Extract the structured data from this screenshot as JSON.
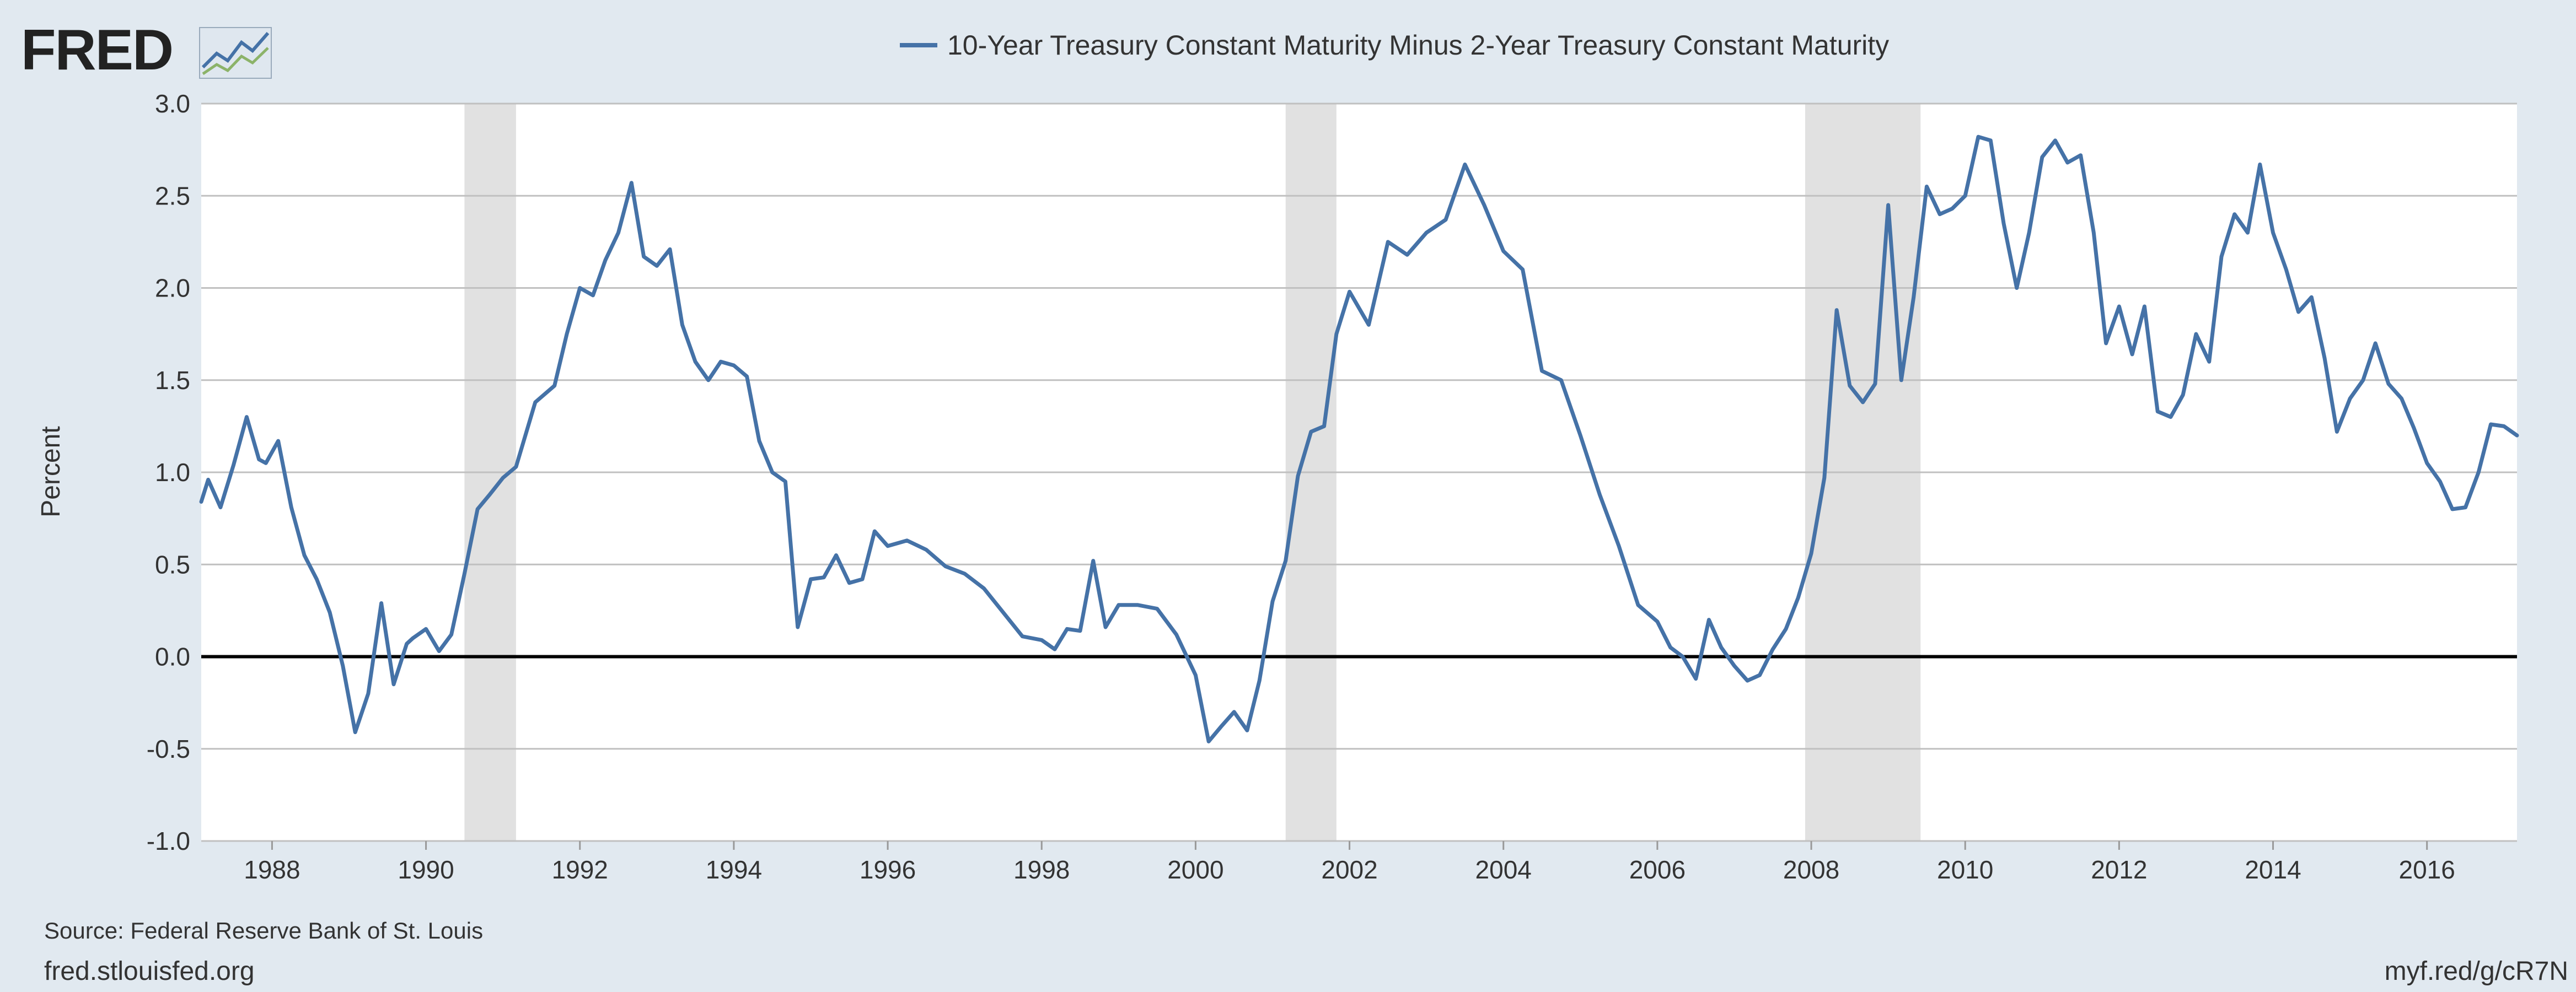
{
  "logo": {
    "text": "FRED",
    "icon": "chart-line-icon"
  },
  "source": "Source: Federal Reserve Bank of St. Louis",
  "site": "fred.stlouisfed.org",
  "shortlink": "myf.red/g/cR7N",
  "colors": {
    "background": "#e1e9f0",
    "plot": "#ffffff",
    "series": "#4572a7",
    "recession": "#e1e1e1",
    "grid": "#c0c0c0",
    "zero_line": "#000000"
  },
  "chart_data": {
    "type": "line",
    "legend_position": "top-center",
    "ylabel": "Percent",
    "ylim": [
      -1.0,
      3.0
    ],
    "yticks": [
      -1.0,
      -0.5,
      0.0,
      0.5,
      1.0,
      1.5,
      2.0,
      2.5,
      3.0
    ],
    "xlim": [
      1987.08,
      2017.17
    ],
    "xticks": [
      1988,
      1990,
      1992,
      1994,
      1996,
      1998,
      2000,
      2002,
      2004,
      2006,
      2008,
      2010,
      2012,
      2014,
      2016
    ],
    "grid": true,
    "zero_line": true,
    "recessions": [
      [
        1990.5,
        1991.17
      ],
      [
        2001.17,
        2001.83
      ],
      [
        2007.92,
        2009.42
      ]
    ],
    "series": [
      {
        "name": "10-Year Treasury Constant Maturity Minus 2-Year Treasury Constant Maturity",
        "x": [
          1987.08,
          1987.17,
          1987.33,
          1987.5,
          1987.67,
          1987.83,
          1987.92,
          1988.08,
          1988.25,
          1988.42,
          1988.58,
          1988.75,
          1988.92,
          1989.08,
          1989.25,
          1989.42,
          1989.58,
          1989.75,
          1989.83,
          1990.0,
          1990.17,
          1990.33,
          1990.5,
          1990.67,
          1990.83,
          1991.0,
          1991.17,
          1991.42,
          1991.67,
          1991.83,
          1992.0,
          1992.17,
          1992.33,
          1992.5,
          1992.67,
          1992.83,
          1993.0,
          1993.17,
          1993.33,
          1993.5,
          1993.67,
          1993.83,
          1994.0,
          1994.17,
          1994.33,
          1994.5,
          1994.67,
          1994.83,
          1995.0,
          1995.17,
          1995.33,
          1995.5,
          1995.67,
          1995.83,
          1996.0,
          1996.25,
          1996.5,
          1996.75,
          1997.0,
          1997.25,
          1997.5,
          1997.75,
          1998.0,
          1998.17,
          1998.33,
          1998.5,
          1998.67,
          1998.83,
          1999.0,
          1999.25,
          1999.5,
          1999.75,
          2000.0,
          2000.17,
          2000.33,
          2000.5,
          2000.67,
          2000.83,
          2001.0,
          2001.17,
          2001.33,
          2001.5,
          2001.67,
          2001.83,
          2002.0,
          2002.25,
          2002.5,
          2002.75,
          2003.0,
          2003.25,
          2003.5,
          2003.75,
          2004.0,
          2004.25,
          2004.5,
          2004.75,
          2005.0,
          2005.25,
          2005.5,
          2005.75,
          2006.0,
          2006.17,
          2006.33,
          2006.5,
          2006.67,
          2006.83,
          2007.0,
          2007.17,
          2007.33,
          2007.5,
          2007.67,
          2007.83,
          2008.0,
          2008.17,
          2008.33,
          2008.5,
          2008.67,
          2008.83,
          2009.0,
          2009.17,
          2009.33,
          2009.5,
          2009.67,
          2009.83,
          2010.0,
          2010.17,
          2010.33,
          2010.5,
          2010.67,
          2010.83,
          2011.0,
          2011.17,
          2011.33,
          2011.5,
          2011.67,
          2011.83,
          2012.0,
          2012.17,
          2012.33,
          2012.5,
          2012.67,
          2012.83,
          2013.0,
          2013.17,
          2013.33,
          2013.5,
          2013.67,
          2013.83,
          2014.0,
          2014.17,
          2014.33,
          2014.5,
          2014.67,
          2014.83,
          2015.0,
          2015.17,
          2015.33,
          2015.5,
          2015.67,
          2015.83,
          2016.0,
          2016.17,
          2016.33,
          2016.5,
          2016.67,
          2016.83,
          2017.0,
          2017.17
        ],
        "values": [
          0.84,
          0.96,
          0.81,
          1.04,
          1.3,
          1.07,
          1.05,
          1.17,
          0.81,
          0.55,
          0.42,
          0.24,
          -0.05,
          -0.41,
          -0.2,
          0.29,
          -0.15,
          0.07,
          0.1,
          0.15,
          0.03,
          0.12,
          0.45,
          0.8,
          0.88,
          0.97,
          1.03,
          1.38,
          1.47,
          1.75,
          2.0,
          1.96,
          2.15,
          2.3,
          2.57,
          2.17,
          2.12,
          2.21,
          1.8,
          1.6,
          1.5,
          1.6,
          1.58,
          1.52,
          1.17,
          1.0,
          0.95,
          0.16,
          0.42,
          0.43,
          0.55,
          0.4,
          0.42,
          0.68,
          0.6,
          0.63,
          0.58,
          0.49,
          0.45,
          0.37,
          0.24,
          0.11,
          0.09,
          0.04,
          0.15,
          0.14,
          0.52,
          0.16,
          0.28,
          0.28,
          0.26,
          0.12,
          -0.1,
          -0.46,
          -0.38,
          -0.3,
          -0.4,
          -0.13,
          0.3,
          0.52,
          0.98,
          1.22,
          1.25,
          1.75,
          1.98,
          1.8,
          2.25,
          2.18,
          2.3,
          2.37,
          2.67,
          2.45,
          2.2,
          2.1,
          1.55,
          1.5,
          1.2,
          0.88,
          0.6,
          0.28,
          0.19,
          0.05,
          0.0,
          -0.12,
          0.2,
          0.05,
          -0.05,
          -0.13,
          -0.1,
          0.04,
          0.15,
          0.32,
          0.56,
          0.97,
          1.88,
          1.47,
          1.38,
          1.48,
          2.45,
          1.5,
          1.95,
          2.55,
          2.4,
          2.43,
          2.5,
          2.82,
          2.8,
          2.35,
          2.0,
          2.3,
          2.71,
          2.8,
          2.68,
          2.72,
          2.3,
          1.7,
          1.9,
          1.64,
          1.9,
          1.33,
          1.3,
          1.42,
          1.75,
          1.6,
          2.17,
          2.4,
          2.3,
          2.67,
          2.3,
          2.1,
          1.87,
          1.95,
          1.62,
          1.22,
          1.4,
          1.5,
          1.7,
          1.48,
          1.4,
          1.24,
          1.05,
          0.95,
          0.8,
          0.81,
          1.0,
          1.26,
          1.25,
          1.2
        ]
      }
    ]
  }
}
